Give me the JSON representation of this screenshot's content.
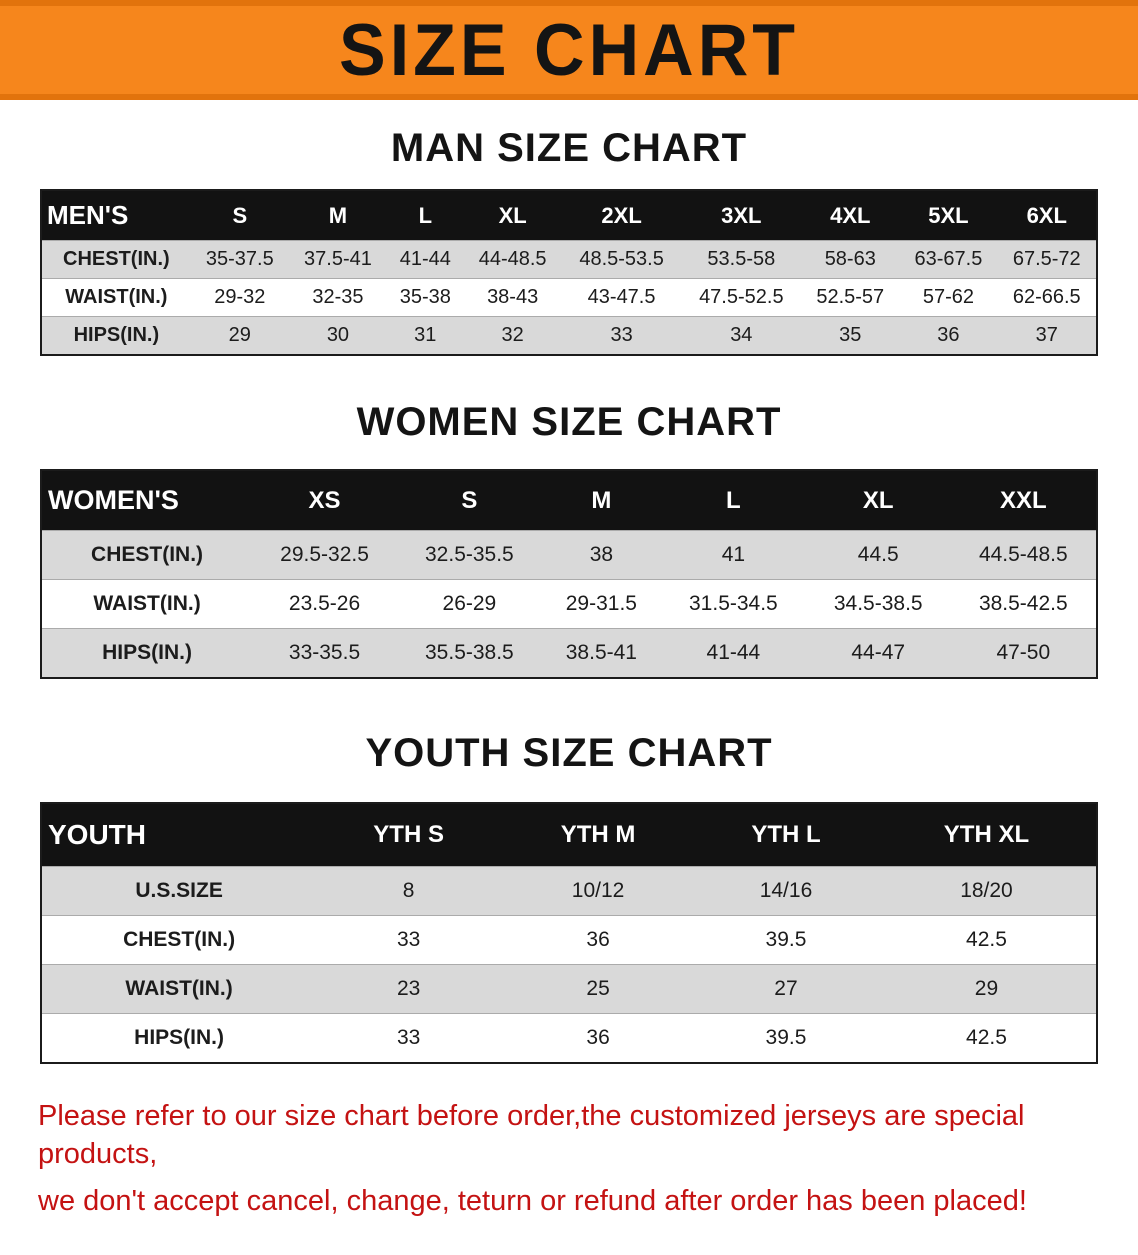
{
  "banner": {
    "title": "SIZE CHART",
    "bg_color": "#f6861c",
    "edge_color": "#e2730c",
    "title_color": "#141414"
  },
  "colors": {
    "table_header_bg": "#121212",
    "table_header_text": "#ffffff",
    "row_stripe": "#d9d9d9",
    "note_text": "#c41212"
  },
  "tables": [
    {
      "id": "men",
      "heading": "MAN SIZE CHART",
      "header": [
        "MEN'S",
        "S",
        "M",
        "L",
        "XL",
        "2XL",
        "3XL",
        "4XL",
        "5XL",
        "6XL"
      ],
      "rows": [
        [
          "CHEST(IN.)",
          "35-37.5",
          "37.5-41",
          "41-44",
          "44-48.5",
          "48.5-53.5",
          "53.5-58",
          "58-63",
          "63-67.5",
          "67.5-72"
        ],
        [
          "WAIST(IN.)",
          "29-32",
          "32-35",
          "35-38",
          "38-43",
          "43-47.5",
          "47.5-52.5",
          "52.5-57",
          "57-62",
          "62-66.5"
        ],
        [
          "HIPS(IN.)",
          "29",
          "30",
          "31",
          "32",
          "33",
          "34",
          "35",
          "36",
          "37"
        ]
      ]
    },
    {
      "id": "women",
      "heading": "WOMEN SIZE CHART",
      "header": [
        "WOMEN'S",
        "XS",
        "S",
        "M",
        "L",
        "XL",
        "XXL"
      ],
      "rows": [
        [
          "CHEST(IN.)",
          "29.5-32.5",
          "32.5-35.5",
          "38",
          "41",
          "44.5",
          "44.5-48.5"
        ],
        [
          "WAIST(IN.)",
          "23.5-26",
          "26-29",
          "29-31.5",
          "31.5-34.5",
          "34.5-38.5",
          "38.5-42.5"
        ],
        [
          "HIPS(IN.)",
          "33-35.5",
          "35.5-38.5",
          "38.5-41",
          "41-44",
          "44-47",
          "47-50"
        ]
      ]
    },
    {
      "id": "youth",
      "heading": "YOUTH SIZE CHART",
      "header": [
        "YOUTH",
        "YTH S",
        "YTH M",
        "YTH L",
        "YTH XL"
      ],
      "rows": [
        [
          "U.S.SIZE",
          "8",
          "10/12",
          "14/16",
          "18/20"
        ],
        [
          "CHEST(IN.)",
          "33",
          "36",
          "39.5",
          "42.5"
        ],
        [
          "WAIST(IN.)",
          "23",
          "25",
          "27",
          "29"
        ],
        [
          "HIPS(IN.)",
          "33",
          "36",
          "39.5",
          "42.5"
        ]
      ]
    }
  ],
  "note": {
    "lines": [
      "Please refer to our size chart before order,the customized jerseys are special products,",
      "we don't accept cancel, change, teturn or refund after order has been placed!"
    ]
  }
}
